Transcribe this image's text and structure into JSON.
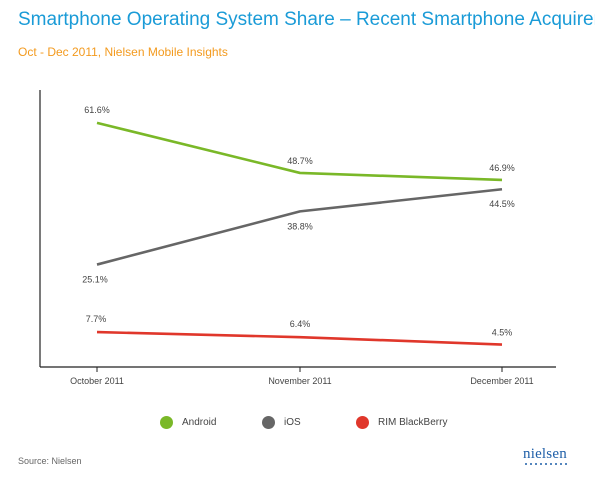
{
  "header": {
    "title": "Smartphone Operating System Share – Recent Smartphone Acquirers",
    "subtitle": "Oct - Dec 2011, Nielsen Mobile Insights"
  },
  "footer": {
    "source": "Source: Nielsen",
    "logo_text": "nielsen"
  },
  "chart_data": {
    "type": "line",
    "title": "Smartphone Operating System Share – Recent Smartphone Acquirers",
    "subtitle": "Oct - Dec 2011, Nielsen Mobile Insights",
    "categories": [
      "October 2011",
      "November 2011",
      "December 2011"
    ],
    "ylim": [
      0,
      70
    ],
    "grid": false,
    "legend_position": "bottom",
    "series": [
      {
        "name": "Android",
        "color": "#7ab828",
        "values": [
          61.6,
          48.7,
          46.9
        ],
        "labels": [
          "61.6%",
          "48.7%",
          "46.9%"
        ]
      },
      {
        "name": "iOS",
        "color": "#666666",
        "values": [
          25.1,
          38.8,
          44.5
        ],
        "labels": [
          "25.1%",
          "38.8%",
          "44.5%"
        ]
      },
      {
        "name": "RIM BlackBerry",
        "color": "#e0372b",
        "values": [
          7.7,
          6.4,
          4.5
        ],
        "labels": [
          "7.7%",
          "6.4%",
          "4.5%"
        ]
      }
    ]
  }
}
